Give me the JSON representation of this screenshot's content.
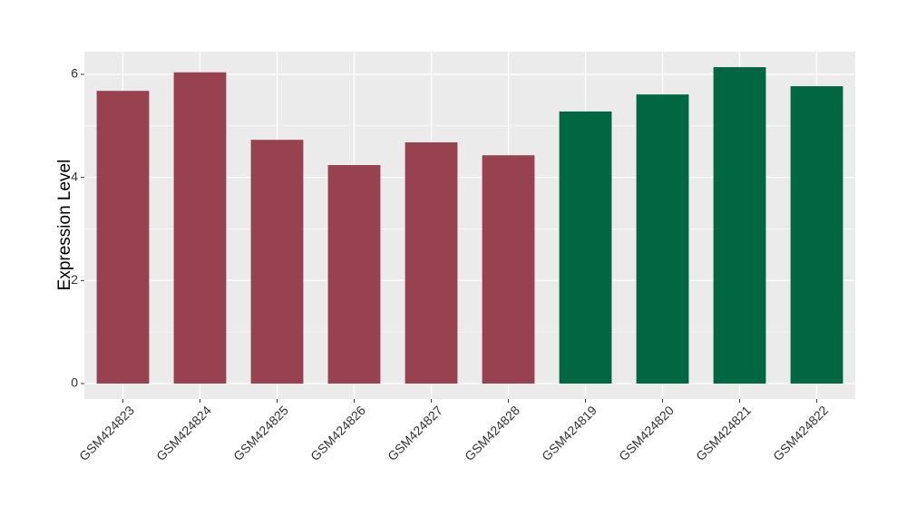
{
  "chart_data": {
    "type": "bar",
    "y_label": "Expression Level",
    "categories": [
      "GSM424823",
      "GSM424824",
      "GSM424825",
      "GSM424826",
      "GSM424827",
      "GSM424828",
      "GSM424819",
      "GSM424820",
      "GSM424821",
      "GSM424822"
    ],
    "values": [
      5.68,
      6.04,
      4.73,
      4.24,
      4.68,
      4.43,
      5.28,
      5.61,
      6.14,
      5.77
    ],
    "colors": [
      "#99424f",
      "#99424f",
      "#99424f",
      "#99424f",
      "#99424f",
      "#99424f",
      "#006743",
      "#006743",
      "#006743",
      "#006743"
    ],
    "ylim": [
      -0.3,
      6.44
    ],
    "yticks": [
      0,
      2,
      4,
      6
    ],
    "minor_yticks": [
      1,
      3,
      5
    ],
    "grid": true
  }
}
